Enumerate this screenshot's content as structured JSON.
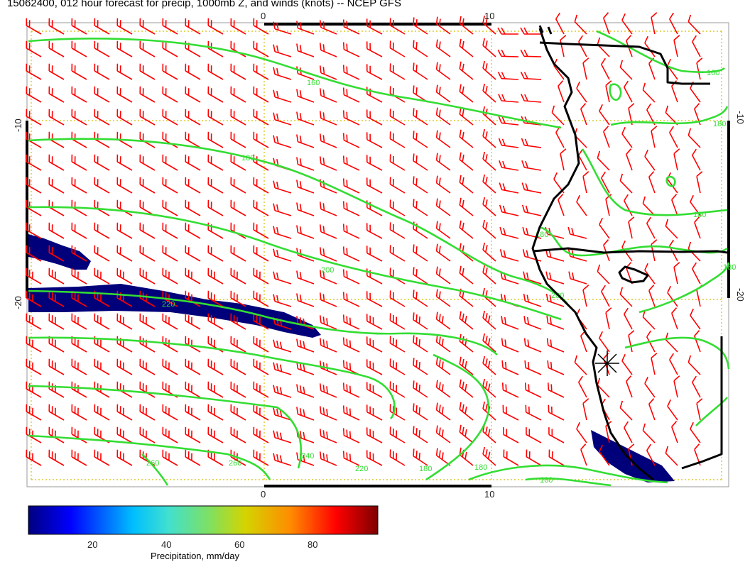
{
  "title": "15062400, 012 hour forecast for precip, 1000mb Z, and winds (knots) -- NCEP GFS",
  "map": {
    "x_ticks": [
      "0",
      "10"
    ],
    "y_ticks": [
      "-10",
      "-20"
    ],
    "contour_labels": [
      "160",
      "160",
      "180",
      "180",
      "180",
      "180",
      "180",
      "200",
      "200",
      "220",
      "220",
      "240",
      "260",
      "260",
      "180",
      "160",
      "180"
    ],
    "colors": {
      "barb": "#ff0000",
      "contour": "#33dd33",
      "precip": "#00007a",
      "grid": "#d4c000",
      "coast": "#000000"
    },
    "marker_icon": "star-marker-icon"
  },
  "colorbar": {
    "ticks": [
      "20",
      "40",
      "60",
      "80"
    ],
    "label": "Precipitation, mm/day",
    "stops": [
      "#00007f",
      "#0000ff",
      "#00bfff",
      "#40e0d0",
      "#80e060",
      "#d4d400",
      "#ff8c00",
      "#ff0000",
      "#7f0000"
    ]
  }
}
